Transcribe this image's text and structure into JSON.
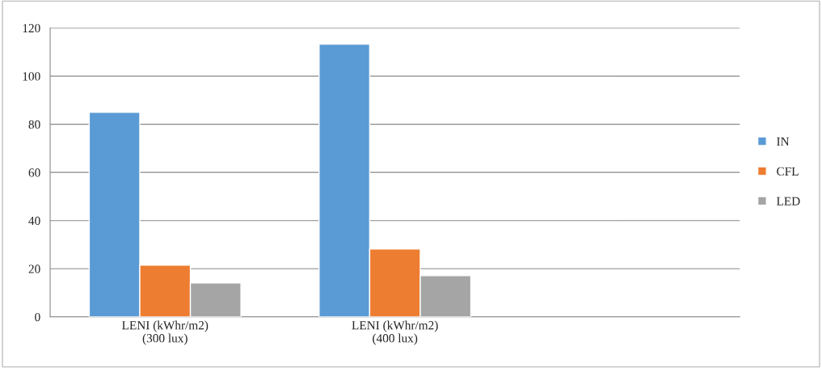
{
  "chart_data": {
    "type": "bar",
    "categories": [
      "LENI (kWhr/m2) (300 lux)",
      "LENI (kWhr/m2) (400 lux)",
      null
    ],
    "series": [
      {
        "name": "IN",
        "color": "#5b9bd5",
        "values": [
          85,
          113.3,
          null
        ]
      },
      {
        "name": "CFL",
        "color": "#ed7d31",
        "values": [
          21.5,
          28.2,
          null
        ]
      },
      {
        "name": "LED",
        "color": "#a5a5a5",
        "values": [
          14.1,
          17.1,
          null
        ]
      }
    ],
    "ylim": [
      0,
      120
    ],
    "yticks": [
      0,
      20,
      40,
      60,
      80,
      100,
      120
    ],
    "grid": "y",
    "legend": "right"
  }
}
